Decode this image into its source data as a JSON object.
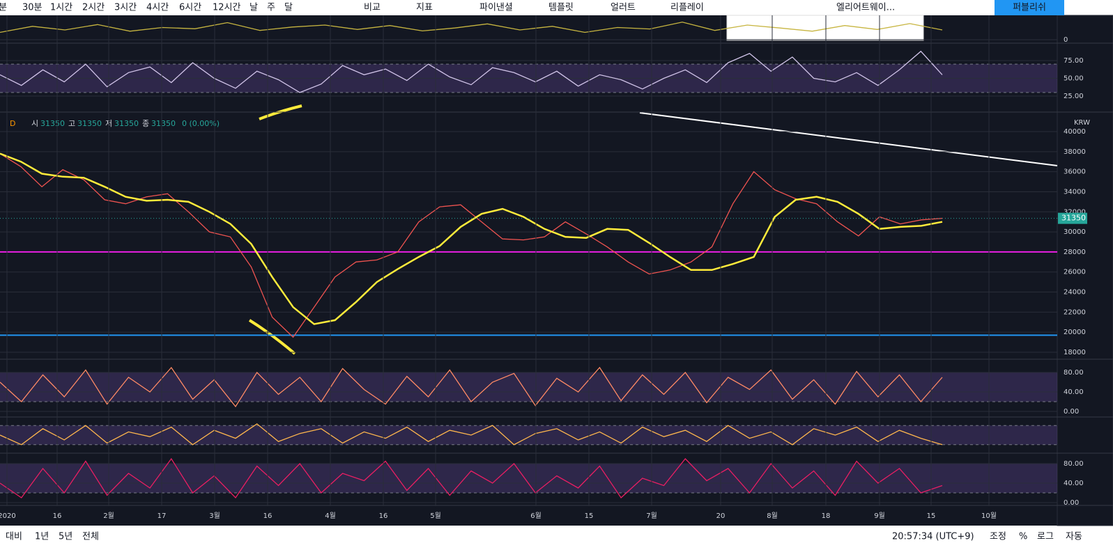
{
  "toolbar": {
    "intervals": [
      "분",
      "30분",
      "1시간",
      "2시간",
      "3시간",
      "4시간",
      "6시간",
      "12시간",
      "날",
      "주",
      "달"
    ],
    "tools": [
      "비교",
      "지표",
      "파이낸셜",
      "템플릿",
      "얼러트",
      "리플레이"
    ],
    "drawing": "엘리어트웨이...",
    "publish": "퍼블리쉬"
  },
  "legend": {
    "flag": "D",
    "items": [
      [
        "시",
        "31350"
      ],
      [
        "고",
        "31350"
      ],
      [
        "저",
        "31350"
      ],
      [
        "종",
        "31350"
      ]
    ],
    "change": "0 (0.00%)"
  },
  "currency": "KRW",
  "time_axis": [
    "2020",
    "16",
    "2월",
    "17",
    "3월",
    "16",
    "4월",
    "16",
    "5월",
    "6월",
    "15",
    "7월",
    "20",
    "8월",
    "18",
    "9월",
    "15",
    "10월"
  ],
  "chart_data": [
    {
      "type": "line",
      "ylim": [
        0,
        100
      ],
      "yticks": [
        0
      ],
      "series": [
        {
          "color": "#c7b540",
          "values": [
            30,
            55,
            40,
            62,
            35,
            50,
            45,
            70,
            38,
            52,
            60,
            42,
            58,
            36,
            48,
            65,
            40,
            55,
            30,
            50,
            44,
            72,
            38,
            60,
            48,
            35,
            58,
            42,
            66,
            40
          ]
        }
      ]
    },
    {
      "type": "line",
      "ylim": [
        0,
        100
      ],
      "yticks": [
        {
          "value": 25,
          "label": "25.00"
        },
        {
          "value": 50,
          "label": "50.00"
        },
        {
          "value": 75,
          "label": "75.00"
        }
      ],
      "series": [
        {
          "color": "#d1c4e9",
          "values": [
            55,
            40,
            62,
            45,
            70,
            38,
            58,
            66,
            44,
            72,
            50,
            36,
            60,
            48,
            30,
            42,
            68,
            55,
            63,
            47,
            70,
            52,
            41,
            65,
            58,
            45,
            60,
            39,
            55,
            48,
            35,
            50,
            62,
            44,
            72,
            85,
            60,
            80,
            50,
            45,
            58,
            40,
            62,
            88,
            55
          ]
        }
      ]
    },
    {
      "type": "line",
      "ylim": [
        17000,
        41000
      ],
      "yticks": [
        18000,
        20000,
        22000,
        24000,
        26000,
        28000,
        30000,
        32000,
        34000,
        36000,
        38000,
        40000
      ],
      "levels": [
        {
          "value": 28000,
          "color": "#e91ee3"
        },
        {
          "value": 19700,
          "color": "#2196f3"
        }
      ],
      "last_price": 31350,
      "last_price_label": "31350",
      "series": [
        {
          "color": "#ef5350",
          "values": [
            37800,
            36500,
            34500,
            36200,
            35200,
            33200,
            32800,
            33500,
            33800,
            32000,
            30000,
            29500,
            26500,
            21500,
            19500,
            22500,
            25500,
            27000,
            27200,
            28000,
            31000,
            32500,
            32700,
            31000,
            29300,
            29200,
            29500,
            31000,
            29800,
            28500,
            27000,
            25800,
            26200,
            27000,
            28500,
            32800,
            36000,
            34200,
            33300,
            32800,
            31000,
            29600,
            31500,
            30800,
            31200,
            31350
          ]
        },
        {
          "color": "#ffeb3b",
          "values": [
            37800,
            37000,
            35800,
            35500,
            35400,
            34500,
            33500,
            33100,
            33200,
            33000,
            32000,
            30800,
            28800,
            25500,
            22500,
            20800,
            21200,
            23000,
            25000,
            26300,
            27500,
            28600,
            30500,
            31800,
            32300,
            31500,
            30300,
            29500,
            29400,
            30300,
            30200,
            28900,
            27500,
            26200,
            26200,
            26800,
            27500,
            31500,
            33200,
            33500,
            33000,
            31800,
            30300,
            30500,
            30600,
            31000
          ]
        }
      ]
    },
    {
      "type": "line",
      "ylim": [
        0,
        100
      ],
      "yticks": [
        {
          "value": 0,
          "label": "0.00"
        },
        {
          "value": 40,
          "label": "40.00"
        },
        {
          "value": 80,
          "label": "80.00"
        }
      ],
      "series": [
        {
          "color": "#ff8a65",
          "values": [
            60,
            20,
            75,
            30,
            85,
            15,
            70,
            40,
            90,
            25,
            65,
            10,
            80,
            35,
            70,
            20,
            88,
            45,
            15,
            72,
            30,
            85,
            20,
            60,
            78,
            12,
            68,
            40,
            90,
            22,
            75,
            35,
            80,
            18,
            70,
            45,
            85,
            25,
            65,
            15,
            82,
            30,
            75,
            20,
            70
          ]
        }
      ]
    },
    {
      "type": "line",
      "ylim": [
        0,
        100
      ],
      "yticks": [],
      "series": [
        {
          "color": "#ffb74d",
          "values": [
            50,
            20,
            70,
            35,
            80,
            25,
            60,
            45,
            75,
            20,
            65,
            40,
            85,
            30,
            55,
            70,
            25,
            60,
            40,
            75,
            30,
            65,
            50,
            80,
            20,
            55,
            70,
            35,
            60,
            25,
            75,
            45,
            65,
            30,
            80,
            40,
            60,
            20,
            70,
            50,
            75,
            30,
            65,
            40,
            20
          ]
        }
      ]
    },
    {
      "type": "line",
      "ylim": [
        0,
        100
      ],
      "yticks": [
        {
          "value": 0,
          "label": "0.00"
        },
        {
          "value": 40,
          "label": "40.00"
        },
        {
          "value": 80,
          "label": "80.00"
        }
      ],
      "series": [
        {
          "color": "#e91e63",
          "values": [
            40,
            10,
            70,
            20,
            85,
            15,
            60,
            30,
            90,
            20,
            55,
            10,
            75,
            35,
            80,
            20,
            60,
            45,
            85,
            25,
            70,
            15,
            65,
            40,
            80,
            20,
            55,
            30,
            75,
            10,
            50,
            35,
            90,
            45,
            70,
            20,
            80,
            30,
            65,
            15,
            85,
            40,
            70,
            20,
            35
          ]
        }
      ]
    }
  ],
  "bottom_bar": {
    "ranges": [
      "대비",
      "1년",
      "5년",
      "전체"
    ],
    "time": "20:57:34 (UTC+9)",
    "options": [
      "조정",
      "%",
      "로그",
      "자동"
    ]
  }
}
